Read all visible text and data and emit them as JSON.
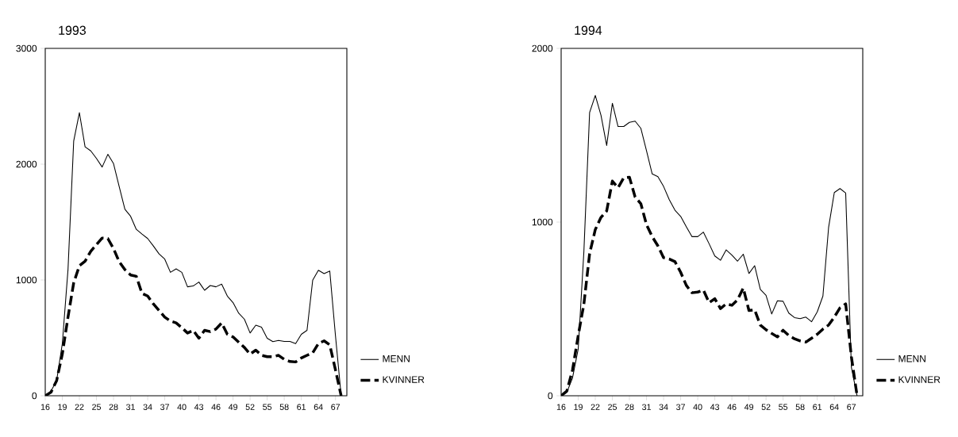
{
  "chart_data": [
    {
      "type": "line",
      "title": "1993",
      "x": [
        16,
        17,
        18,
        19,
        20,
        21,
        22,
        23,
        24,
        25,
        26,
        27,
        28,
        29,
        30,
        31,
        32,
        33,
        34,
        35,
        36,
        37,
        38,
        39,
        40,
        41,
        42,
        43,
        44,
        45,
        46,
        47,
        48,
        49,
        50,
        51,
        52,
        53,
        54,
        55,
        56,
        57,
        58,
        59,
        60,
        61,
        62,
        63,
        64,
        65,
        66,
        67,
        68
      ],
      "series": [
        {
          "name": "MENN",
          "color": "#000000",
          "line_style": "solid",
          "values": [
            0,
            40,
            130,
            450,
            1090,
            2200,
            2445,
            2150,
            2115,
            2050,
            1975,
            2085,
            2005,
            1805,
            1610,
            1550,
            1437,
            1396,
            1358,
            1294,
            1225,
            1180,
            1066,
            1096,
            1066,
            941,
            948,
            982,
            911,
            952,
            941,
            964,
            861,
            804,
            713,
            661,
            542,
            610,
            592,
            497,
            467,
            478,
            469,
            469,
            451,
            531,
            565,
            998,
            1084,
            1055,
            1077,
            519,
            0
          ]
        },
        {
          "name": "KVINNER",
          "color": "#000000",
          "line_style": "dashed",
          "values": [
            0,
            30,
            130,
            360,
            680,
            975,
            1123,
            1162,
            1248,
            1305,
            1362,
            1358,
            1271,
            1157,
            1089,
            1043,
            1032,
            884,
            861,
            793,
            736,
            679,
            645,
            629,
            588,
            542,
            565,
            497,
            565,
            554,
            576,
            629,
            531,
            508,
            462,
            417,
            360,
            394,
            349,
            337,
            337,
            349,
            314,
            296,
            292,
            326,
            349,
            371,
            451,
            474,
            440,
            223,
            0
          ]
        }
      ],
      "xlim": [
        16,
        69
      ],
      "xticks": [
        16,
        19,
        22,
        25,
        28,
        31,
        34,
        37,
        40,
        43,
        46,
        49,
        52,
        55,
        58,
        61,
        64,
        67
      ],
      "ylim": [
        0,
        3000
      ],
      "yticks": [
        0,
        1000,
        2000,
        3000
      ],
      "grid": false,
      "legend": "bottom right",
      "marker": "none"
    },
    {
      "type": "line",
      "title": "1994",
      "x": [
        16,
        17,
        18,
        19,
        20,
        21,
        22,
        23,
        24,
        25,
        26,
        27,
        28,
        29,
        30,
        31,
        32,
        33,
        34,
        35,
        36,
        37,
        38,
        39,
        40,
        41,
        42,
        43,
        44,
        45,
        46,
        47,
        48,
        49,
        50,
        51,
        52,
        53,
        54,
        55,
        56,
        57,
        58,
        59,
        60,
        61,
        62,
        63,
        64,
        65,
        66,
        67,
        68
      ],
      "series": [
        {
          "name": "MENN",
          "color": "#000000",
          "line_style": "solid",
          "values": [
            0,
            20,
            103,
            270,
            833,
            1631,
            1729,
            1615,
            1441,
            1684,
            1550,
            1550,
            1574,
            1581,
            1540,
            1410,
            1277,
            1261,
            1205,
            1129,
            1068,
            1033,
            973,
            916,
            916,
            942,
            875,
            805,
            780,
            840,
            810,
            775,
            815,
            704,
            749,
            612,
            578,
            471,
            547,
            544,
            476,
            450,
            444,
            453,
            426,
            483,
            574,
            970,
            1170,
            1193,
            1167,
            164,
            0
          ]
        },
        {
          "name": "KVINNER",
          "color": "#000000",
          "line_style": "dashed",
          "values": [
            0,
            27,
            149,
            347,
            529,
            818,
            957,
            1027,
            1064,
            1236,
            1198,
            1255,
            1258,
            1144,
            1106,
            985,
            916,
            863,
            795,
            787,
            772,
            711,
            635,
            593,
            597,
            608,
            536,
            559,
            502,
            529,
            521,
            552,
            620,
            491,
            495,
            407,
            380,
            359,
            339,
            377,
            347,
            328,
            316,
            309,
            331,
            354,
            384,
            407,
            453,
            506,
            529,
            225,
            0
          ]
        }
      ],
      "xlim": [
        16,
        69
      ],
      "xticks": [
        16,
        19,
        22,
        25,
        28,
        31,
        34,
        37,
        40,
        43,
        46,
        49,
        52,
        55,
        58,
        61,
        64,
        67
      ],
      "ylim": [
        0,
        2000
      ],
      "yticks": [
        0,
        1000,
        2000
      ],
      "grid": false,
      "legend": "bottom right",
      "marker": "none"
    }
  ]
}
